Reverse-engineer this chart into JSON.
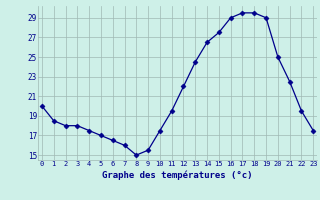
{
  "hours": [
    0,
    1,
    2,
    3,
    4,
    5,
    6,
    7,
    8,
    9,
    10,
    11,
    12,
    13,
    14,
    15,
    16,
    17,
    18,
    19,
    20,
    21,
    22,
    23
  ],
  "temps": [
    20.0,
    18.5,
    18.0,
    18.0,
    17.5,
    17.0,
    16.5,
    16.0,
    15.0,
    15.5,
    17.5,
    19.5,
    22.0,
    24.5,
    26.5,
    27.5,
    29.0,
    29.5,
    29.5,
    29.0,
    25.0,
    22.5,
    19.5,
    17.5
  ],
  "line_color": "#00008B",
  "marker": "D",
  "marker_size": 2.5,
  "bg_color": "#cef0e8",
  "grid_color": "#a0b8b4",
  "xlabel": "Graphe des températures (°c)",
  "xlabel_color": "#00008B",
  "tick_color": "#00008B",
  "ylim": [
    14.5,
    30.2
  ],
  "yticks": [
    15,
    17,
    19,
    21,
    23,
    25,
    27,
    29
  ],
  "xlim": [
    -0.3,
    23.3
  ]
}
